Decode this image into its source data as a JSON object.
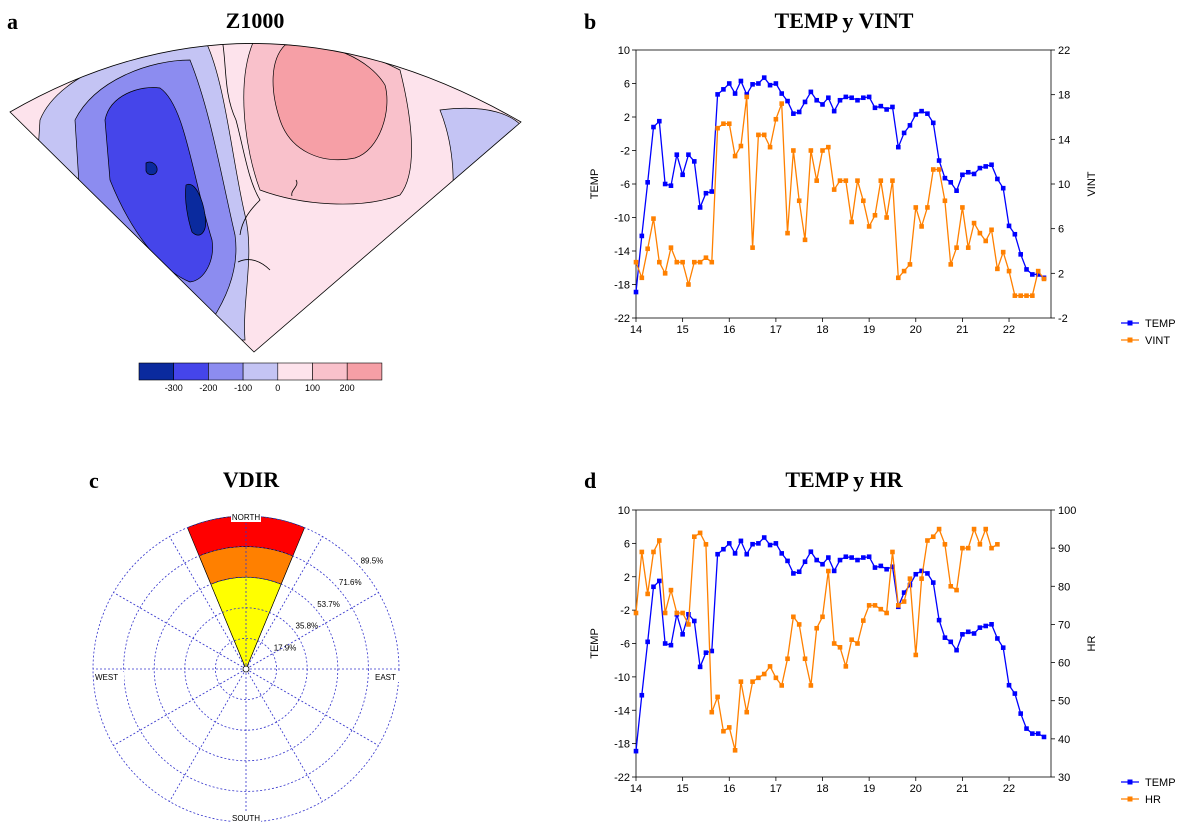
{
  "panels": {
    "a": {
      "letter": "a",
      "title": "Z1000"
    },
    "b": {
      "letter": "b",
      "title": "TEMP y VINT"
    },
    "c": {
      "letter": "c",
      "title": "VDIR"
    },
    "d": {
      "letter": "d",
      "title": "TEMP y HR"
    }
  },
  "chart_data": [
    {
      "panel": "a",
      "type": "heatmap",
      "title": "Z1000",
      "colorbar": {
        "levels": [
          -300,
          -200,
          -100,
          0,
          100,
          200
        ],
        "colors": [
          "#0a2a9e",
          "#4545ea",
          "#8c8cf0",
          "#c4c4f4",
          "#fde3ec",
          "#f9c1cb",
          "#f69fa6"
        ]
      }
    },
    {
      "panel": "b",
      "type": "line",
      "title": "TEMP y VINT",
      "ylabel": "TEMP",
      "y2label": "VINT",
      "xlim": [
        14,
        22.9
      ],
      "ylim": [
        -22,
        10
      ],
      "y2lim": [
        -2,
        22
      ],
      "xticks": [
        14,
        15,
        16,
        17,
        18,
        19,
        20,
        21,
        22
      ],
      "yticks": [
        -22,
        -18,
        -14,
        -10,
        -6,
        -2,
        2,
        6,
        10
      ],
      "y2ticks": [
        -2,
        2,
        6,
        10,
        14,
        18,
        22
      ],
      "legend_position": "bottom-right",
      "series": [
        {
          "name": "TEMP",
          "axis": "left",
          "color": "#0000ff",
          "x_start": 14,
          "x_step": 0.125,
          "values": [
            -18.9,
            -12.2,
            -5.8,
            0.8,
            1.5,
            -6,
            -6.2,
            -2.5,
            -4.9,
            -2.5,
            -3.3,
            -8.8,
            -7.1,
            -6.9,
            4.7,
            5.3,
            6,
            4.8,
            6.3,
            4.7,
            5.9,
            6,
            6.7,
            5.8,
            6,
            4.8,
            3.9,
            2.4,
            2.6,
            3.8,
            5,
            4,
            3.5,
            4.3,
            2.7,
            4,
            4.4,
            4.3,
            4,
            4.3,
            4.4,
            3.1,
            3.3,
            2.9,
            3.2,
            -1.6,
            0.1,
            1,
            2.3,
            2.7,
            2.4,
            1.3,
            -3.2,
            -5.3,
            -5.8,
            -6.8,
            -4.9,
            -4.6,
            -4.8,
            -4.1,
            -3.9,
            -3.7,
            -5.4,
            -6.5,
            -11,
            -12,
            -14.4,
            -16.2,
            -16.8,
            -16.8,
            -17.2
          ]
        },
        {
          "name": "VINT",
          "axis": "right",
          "color": "#ff8000",
          "x_start": 14,
          "x_step": 0.125,
          "values": [
            3,
            1.6,
            4.2,
            6.9,
            3,
            2,
            4.3,
            3,
            3,
            1,
            3,
            3,
            3.4,
            3,
            15,
            15.4,
            15.4,
            12.5,
            13.4,
            17.8,
            4.3,
            14.4,
            14.4,
            13.3,
            15.8,
            17.2,
            5.6,
            13,
            8.5,
            5,
            13,
            10.3,
            13,
            13.3,
            9.5,
            10.3,
            10.3,
            6.6,
            10.3,
            8.5,
            6.2,
            7.2,
            10.3,
            7,
            10.3,
            1.6,
            2.2,
            2.8,
            7.9,
            6.2,
            7.9,
            11.3,
            11.3,
            8.5,
            2.8,
            4.3,
            7.9,
            4.3,
            6.5,
            5.6,
            4.9,
            5.9,
            2.4,
            3.9,
            2.2,
            0,
            0,
            0,
            0,
            2.2,
            1.5
          ]
        }
      ]
    },
    {
      "panel": "c",
      "type": "pie",
      "title": "VDIR",
      "directions": [
        "NORTH",
        "EAST",
        "SOUTH",
        "WEST"
      ],
      "rings": [
        "17.9%",
        "35.8%",
        "53.7%",
        "71.6%",
        "89.5%"
      ],
      "sector_direction": "NORTH",
      "sector_halfwidth_deg": 22.5,
      "bands": [
        {
          "range": [
            0,
            53.7
          ],
          "color": "#ffff00"
        },
        {
          "range": [
            53.7,
            71.6
          ],
          "color": "#ff8000"
        },
        {
          "range": [
            71.6,
            89.5
          ],
          "color": "#ff0000"
        }
      ]
    },
    {
      "panel": "d",
      "type": "line",
      "title": "TEMP y HR",
      "ylabel": "TEMP",
      "y2label": "HR",
      "xlim": [
        14,
        22.9
      ],
      "ylim": [
        -22,
        10
      ],
      "y2lim": [
        30,
        100
      ],
      "xticks": [
        14,
        15,
        16,
        17,
        18,
        19,
        20,
        21,
        22
      ],
      "yticks": [
        -22,
        -18,
        -14,
        -10,
        -6,
        -2,
        2,
        6,
        10
      ],
      "y2ticks": [
        30,
        40,
        50,
        60,
        70,
        80,
        90,
        100
      ],
      "legend_position": "bottom-right",
      "series": [
        {
          "name": "TEMP",
          "axis": "left",
          "color": "#0000ff",
          "x_start": 14,
          "x_step": 0.125,
          "values": [
            -18.9,
            -12.2,
            -5.8,
            0.8,
            1.5,
            -6,
            -6.2,
            -2.5,
            -4.9,
            -2.5,
            -3.3,
            -8.8,
            -7.1,
            -6.9,
            4.7,
            5.3,
            6,
            4.8,
            6.3,
            4.7,
            5.9,
            6,
            6.7,
            5.8,
            6,
            4.8,
            3.9,
            2.4,
            2.6,
            3.8,
            5,
            4,
            3.5,
            4.3,
            2.7,
            4,
            4.4,
            4.3,
            4,
            4.3,
            4.4,
            3.1,
            3.3,
            2.9,
            3.2,
            -1.6,
            0.1,
            1,
            2.3,
            2.7,
            2.4,
            1.3,
            -3.2,
            -5.3,
            -5.8,
            -6.8,
            -4.9,
            -4.6,
            -4.8,
            -4.1,
            -3.9,
            -3.7,
            -5.4,
            -6.5,
            -11,
            -12,
            -14.4,
            -16.2,
            -16.8,
            -16.8,
            -17.2
          ]
        },
        {
          "name": "HR",
          "axis": "right",
          "color": "#ff8000",
          "x_start": 14,
          "x_step": 0.125,
          "values": [
            73,
            89,
            78,
            89,
            92,
            73,
            79,
            73,
            73,
            70,
            93,
            94,
            91,
            47,
            51,
            42,
            43,
            37,
            55,
            47,
            55,
            56,
            57,
            59,
            56,
            54,
            61,
            72,
            70,
            61,
            54,
            69,
            72,
            84,
            65,
            64,
            59,
            66,
            65,
            71,
            75,
            75,
            74,
            73,
            89,
            75,
            76,
            82,
            62,
            82,
            92,
            93,
            95,
            91,
            80,
            79,
            90,
            90,
            95,
            91,
            95,
            90,
            91
          ]
        }
      ]
    }
  ]
}
